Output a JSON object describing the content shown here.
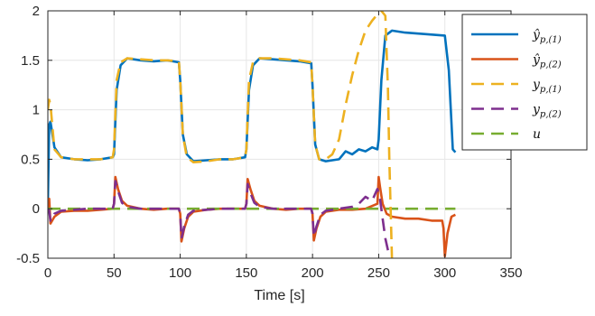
{
  "chart_data": {
    "type": "line",
    "title": "",
    "xlabel": "Time [s]",
    "ylabel": "",
    "xlim": [
      0,
      350
    ],
    "ylim": [
      -0.5,
      2
    ],
    "xticks": [
      0,
      50,
      100,
      150,
      200,
      250,
      300,
      350
    ],
    "yticks": [
      -0.5,
      0,
      0.5,
      1,
      1.5,
      2
    ],
    "xtick_labels": [
      "0",
      "50",
      "100",
      "150",
      "200",
      "250",
      "300",
      "350"
    ],
    "ytick_labels": [
      "-0.5",
      "0",
      "0.5",
      "1",
      "1.5",
      "2"
    ],
    "grid": true,
    "legend_position": "top-right",
    "series": [
      {
        "name": "ŷp,(1)",
        "legend": {
          "base": "ŷ",
          "sub": "p,(1)"
        },
        "color": "#0072BD",
        "dash": "solid",
        "x": [
          0,
          1,
          2,
          5,
          10,
          20,
          30,
          40,
          49,
          50,
          52,
          55,
          60,
          70,
          80,
          90,
          99,
          100,
          102,
          105,
          110,
          120,
          130,
          140,
          149,
          150,
          152,
          155,
          160,
          170,
          180,
          190,
          199,
          200,
          202,
          205,
          210,
          220,
          225,
          230,
          235,
          240,
          245,
          249,
          250,
          252,
          255,
          260,
          270,
          280,
          290,
          300,
          303,
          306,
          308
        ],
        "y": [
          0.05,
          0.85,
          0.88,
          0.62,
          0.52,
          0.5,
          0.49,
          0.5,
          0.52,
          0.55,
          1.2,
          1.45,
          1.52,
          1.5,
          1.49,
          1.5,
          1.48,
          1.3,
          0.75,
          0.55,
          0.48,
          0.49,
          0.5,
          0.5,
          0.52,
          0.6,
          1.2,
          1.45,
          1.52,
          1.51,
          1.5,
          1.49,
          1.47,
          1.25,
          0.65,
          0.5,
          0.48,
          0.5,
          0.58,
          0.55,
          0.6,
          0.58,
          0.62,
          0.6,
          0.7,
          1.3,
          1.75,
          1.8,
          1.78,
          1.77,
          1.76,
          1.75,
          1.4,
          0.6,
          0.57
        ]
      },
      {
        "name": "ŷp,(2)",
        "legend": {
          "base": "ŷ",
          "sub": "p,(2)"
        },
        "color": "#D95319",
        "dash": "solid",
        "x": [
          0,
          1,
          2,
          5,
          10,
          20,
          30,
          40,
          49,
          50,
          51,
          53,
          56,
          60,
          70,
          80,
          90,
          99,
          100,
          101,
          103,
          106,
          110,
          120,
          130,
          140,
          149,
          150,
          151,
          153,
          156,
          160,
          170,
          180,
          190,
          199,
          200,
          201,
          203,
          206,
          210,
          220,
          230,
          240,
          249,
          250,
          251,
          253,
          256,
          260,
          270,
          280,
          290,
          298,
          299,
          300,
          302,
          305,
          308
        ],
        "y": [
          0.0,
          0.1,
          -0.15,
          -0.08,
          -0.03,
          -0.02,
          -0.02,
          -0.01,
          0.0,
          0.05,
          0.32,
          0.2,
          0.08,
          0.03,
          0.0,
          -0.01,
          0.0,
          0.0,
          -0.05,
          -0.33,
          -0.2,
          -0.08,
          -0.03,
          -0.01,
          0.0,
          0.0,
          0.0,
          0.05,
          0.3,
          0.2,
          0.08,
          0.03,
          0.0,
          -0.01,
          0.0,
          0.0,
          -0.05,
          -0.32,
          -0.2,
          -0.08,
          -0.03,
          -0.01,
          -0.01,
          0.0,
          0.05,
          0.32,
          0.22,
          0.05,
          -0.05,
          -0.08,
          -0.1,
          -0.1,
          -0.12,
          -0.12,
          -0.2,
          -0.48,
          -0.25,
          -0.08,
          -0.06
        ]
      },
      {
        "name": "yp,(1)",
        "legend": {
          "base": "y",
          "sub": "p,(1)"
        },
        "color": "#EDB120",
        "dash": "dashed",
        "x": [
          0,
          1,
          2,
          5,
          10,
          20,
          30,
          40,
          49,
          50,
          52,
          55,
          60,
          70,
          80,
          90,
          99,
          100,
          102,
          105,
          110,
          120,
          130,
          140,
          149,
          150,
          152,
          155,
          160,
          170,
          180,
          190,
          199,
          200,
          202,
          205,
          210,
          215,
          220,
          225,
          230,
          235,
          240,
          245,
          250,
          252,
          255,
          257,
          258,
          260
        ],
        "y": [
          1.0,
          1.1,
          1.05,
          0.6,
          0.52,
          0.5,
          0.5,
          0.5,
          0.52,
          0.6,
          1.3,
          1.48,
          1.52,
          1.51,
          1.5,
          1.5,
          1.49,
          1.3,
          0.75,
          0.52,
          0.47,
          0.48,
          0.5,
          0.5,
          0.52,
          0.6,
          1.3,
          1.48,
          1.52,
          1.52,
          1.51,
          1.5,
          1.48,
          1.25,
          0.65,
          0.5,
          0.5,
          0.55,
          0.7,
          1.05,
          1.35,
          1.6,
          1.8,
          1.9,
          1.98,
          2.0,
          1.95,
          1.2,
          0.5,
          -0.5
        ]
      },
      {
        "name": "yp,(2)",
        "legend": {
          "base": "y",
          "sub": "p,(2)"
        },
        "color": "#7E2F8E",
        "dash": "dashed",
        "x": [
          0,
          1,
          2,
          5,
          10,
          20,
          30,
          40,
          49,
          50,
          51,
          53,
          56,
          60,
          70,
          80,
          90,
          99,
          100,
          101,
          103,
          106,
          110,
          120,
          130,
          140,
          149,
          150,
          151,
          153,
          156,
          160,
          170,
          180,
          190,
          199,
          200,
          201,
          203,
          206,
          210,
          220,
          230,
          235,
          240,
          245,
          249,
          251,
          253,
          255,
          257
        ],
        "y": [
          0.0,
          -0.02,
          -0.12,
          -0.05,
          -0.02,
          -0.01,
          0.0,
          0.0,
          0.0,
          0.05,
          0.28,
          0.18,
          0.06,
          0.02,
          0.0,
          0.0,
          0.0,
          0.0,
          -0.05,
          -0.3,
          -0.18,
          -0.06,
          -0.02,
          -0.01,
          0.0,
          0.0,
          0.0,
          0.05,
          0.25,
          0.16,
          0.06,
          0.02,
          0.0,
          0.0,
          0.0,
          0.0,
          -0.05,
          -0.28,
          -0.18,
          -0.06,
          -0.02,
          0.0,
          0.02,
          0.05,
          0.12,
          0.08,
          0.2,
          0.1,
          -0.1,
          -0.3,
          -0.42
        ]
      },
      {
        "name": "u",
        "legend": {
          "base": "u",
          "sub": ""
        },
        "color": "#77AC30",
        "dash": "dashed",
        "x": [
          0,
          50,
          100,
          150,
          200,
          250,
          300,
          308
        ],
        "y": [
          0.0,
          0.0,
          0.0,
          0.0,
          0.0,
          0.0,
          0.0,
          0.0
        ]
      }
    ]
  }
}
